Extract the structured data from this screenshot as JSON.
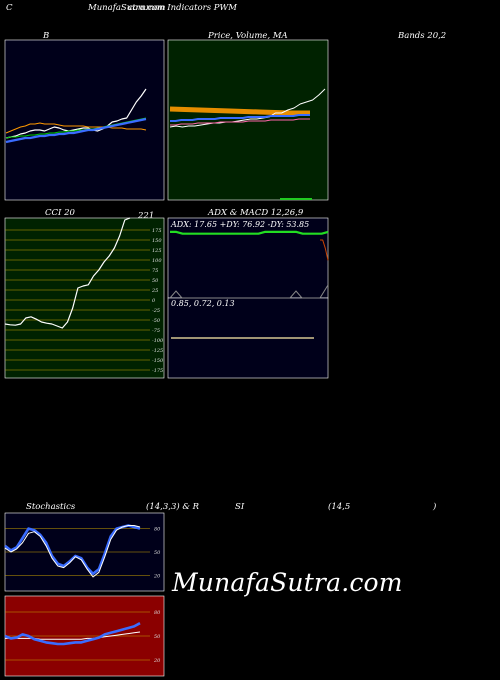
{
  "header": {
    "left": "C",
    "center": "MunafaSutra.com",
    "center2": "common Indicators PWM"
  },
  "labels": {
    "b": "B",
    "price": "Price, Volume, MA",
    "bands": "Bands 20,2",
    "cci": "CCI 20",
    "cci_value": "221",
    "adx": "ADX  & MACD 12,26,9",
    "adx_line": "ADX: 17.65  +DY: 76.92  -DY: 53.85",
    "macd_line": "0.85,  0.72,  0.13",
    "stoch": "Stochastics",
    "stoch_params": "(14,3,3) & R",
    "si": "SI",
    "rsi_params": "(14,5",
    "rsi_close": ")"
  },
  "watermark": "MunafaSutra.com",
  "colors": {
    "bands_bg": "#00001a",
    "price_bg": "#002200",
    "cci_bg": "#002200",
    "adx_bg": "#00001a",
    "stoch_bg": "#00001a",
    "rsi_bg": "#8b0000"
  },
  "chart_data": [
    {
      "type": "line",
      "panel": "bollinger",
      "series": [
        {
          "values": [
            138,
            137,
            136,
            134,
            133,
            131,
            130,
            130,
            131,
            129,
            127,
            128,
            130,
            131,
            130,
            129,
            128,
            128,
            130,
            131,
            129,
            126,
            122,
            121,
            119,
            118,
            110,
            102,
            96,
            89
          ]
        },
        {
          "values": [
            138,
            137,
            137,
            136,
            136,
            135,
            135,
            134,
            134,
            133,
            133,
            132,
            132,
            131,
            131,
            130,
            130,
            129,
            129,
            128,
            127,
            126,
            125,
            124,
            123,
            122,
            121,
            120,
            119,
            118
          ]
        },
        {
          "values": [
            133,
            131,
            129,
            127,
            126,
            124,
            124,
            123,
            124,
            124,
            124,
            125,
            126,
            126,
            126,
            126,
            126,
            127,
            127,
            127,
            127,
            127,
            128,
            128,
            128,
            129,
            129,
            129,
            129,
            130
          ]
        },
        {
          "values": [
            142,
            141,
            140,
            139,
            138,
            138,
            137,
            136,
            136,
            135,
            135,
            134,
            134,
            133,
            133,
            132,
            131,
            130,
            130,
            129,
            128,
            127,
            126,
            125,
            124,
            123,
            122,
            121,
            120,
            119
          ]
        }
      ]
    },
    {
      "type": "line",
      "panel": "price",
      "series": [
        {
          "values": [
            127,
            126,
            127,
            126,
            126,
            125,
            124,
            123,
            123,
            122,
            122,
            121,
            120,
            119,
            119,
            118,
            117,
            113,
            113,
            110,
            108,
            104,
            102,
            100,
            95,
            89
          ]
        },
        {
          "values": [
            113,
            113,
            112,
            112,
            112,
            111,
            111,
            111,
            111,
            110,
            110,
            110,
            110,
            110,
            109,
            109,
            109,
            109,
            108,
            108,
            108,
            108,
            108,
            107,
            107,
            107
          ]
        }
      ]
    },
    {
      "type": "line",
      "panel": "cci",
      "yticks": [
        "175",
        "150",
        "125",
        "100",
        "75",
        "50",
        "25",
        "0",
        "-25",
        "-50",
        "-75",
        "-100",
        "-125",
        "-150",
        "-175"
      ],
      "values": [
        -60,
        -62,
        -63,
        -60,
        -45,
        -42,
        -48,
        -55,
        -58,
        -60,
        -65,
        -70,
        -55,
        -20,
        30,
        35,
        38,
        60,
        75,
        95,
        110,
        130,
        160,
        200,
        221
      ]
    },
    {
      "type": "line",
      "panel": "adx",
      "series": [
        {
          "name": "+DY",
          "values": [
            76.92,
            76.92,
            71,
            71,
            71,
            71,
            71,
            71,
            71,
            71,
            71,
            71,
            71,
            71,
            71,
            76.92,
            76.92,
            76.92,
            76.92,
            76.92,
            76.92,
            71,
            71,
            71,
            71,
            76.92
          ]
        },
        {
          "name": "-DY",
          "values": [
            53.85,
            53.85,
            53.85,
            50,
            50,
            50,
            50,
            50,
            50,
            50,
            50,
            50,
            50,
            50,
            50,
            53.85,
            53.85,
            53.85,
            53.85,
            53.85,
            53.85,
            53.85,
            53.85,
            53.85,
            53.85,
            53.85
          ]
        }
      ]
    },
    {
      "type": "line",
      "panel": "stochastics",
      "yticks": [
        "80",
        "50",
        "20"
      ],
      "series": [
        {
          "values": [
            58,
            52,
            56,
            68,
            80,
            78,
            72,
            62,
            45,
            35,
            32,
            38,
            45,
            42,
            30,
            22,
            28,
            48,
            70,
            80,
            82,
            84,
            82,
            80
          ]
        },
        {
          "values": [
            55,
            50,
            54,
            62,
            74,
            76,
            70,
            58,
            42,
            32,
            30,
            36,
            44,
            40,
            28,
            18,
            24,
            44,
            66,
            78,
            82,
            84,
            84,
            82
          ]
        }
      ]
    },
    {
      "type": "line",
      "panel": "rsi",
      "yticks": [
        "80",
        "50",
        "20"
      ],
      "series": [
        {
          "values": [
            50,
            47,
            48,
            52,
            50,
            46,
            44,
            42,
            41,
            40,
            40,
            41,
            42,
            42,
            44,
            46,
            48,
            52,
            54,
            56,
            58,
            60,
            62,
            66
          ]
        },
        {
          "values": [
            47,
            47,
            47,
            47,
            47,
            47,
            46,
            46,
            46,
            46,
            46,
            46,
            46,
            46,
            47,
            47,
            48,
            49,
            50,
            51,
            52,
            53,
            54,
            55
          ]
        }
      ]
    }
  ]
}
